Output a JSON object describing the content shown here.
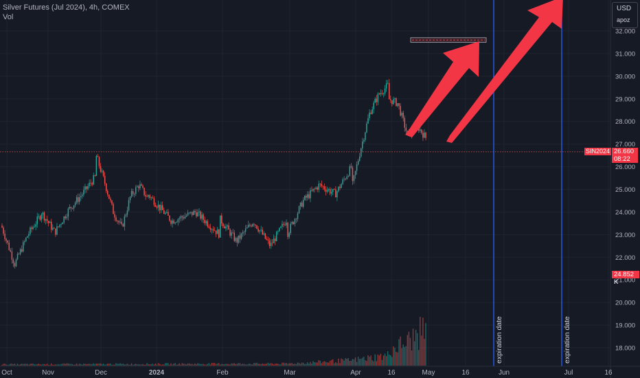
{
  "header": {
    "title": "Silver Futures (Jul 2024), 4h, COMEX",
    "volume_label": "Vol"
  },
  "scale_box": {
    "currency": "USD",
    "mode": "apoz"
  },
  "last_price": {
    "symbol": "SIN2024",
    "value": "26.660",
    "countdown": "08:22"
  },
  "last_volume": {
    "value": "24.852 K"
  },
  "colors": {
    "background": "#161a25",
    "up": "#26a69a",
    "down": "#ef5350",
    "arrow": "#f23645",
    "expiry_line": "#2962ff",
    "axis_text": "#b2b5be"
  },
  "chart_data": {
    "type": "candlestick",
    "title": "Silver Futures (Jul 2024), 4h, COMEX",
    "y_axis": {
      "ticks": [
        "32.000",
        "31.000",
        "30.000",
        "29.000",
        "28.000",
        "27.000",
        "26.000",
        "25.000",
        "24.000",
        "23.000",
        "22.000",
        "21.000",
        "20.000",
        "19.000",
        "18.000"
      ],
      "range": [
        17.3,
        32.6
      ]
    },
    "x_axis": {
      "ticks": [
        "Oct",
        "Nov",
        "Dec",
        "2024",
        "Feb",
        "Mar",
        "Apr",
        "16",
        "May",
        "16",
        "Jun",
        "Jul",
        "16"
      ]
    },
    "price_path": [
      [
        "Oct",
        23.4
      ],
      [
        "Oct",
        21.7
      ],
      [
        "Oct",
        23.0
      ],
      [
        "Oct",
        23.9
      ],
      [
        "Nov",
        24.0
      ],
      [
        "Nov",
        23.1
      ],
      [
        "Nov",
        24.1
      ],
      [
        "Nov",
        24.8
      ],
      [
        "Nov",
        25.6
      ],
      [
        "Dec",
        26.5
      ],
      [
        "Dec",
        25.3
      ],
      [
        "Dec",
        24.0
      ],
      [
        "Dec",
        23.3
      ],
      [
        "Dec",
        24.7
      ],
      [
        "Dec",
        25.2
      ],
      [
        "Dec",
        24.6
      ],
      [
        "2024",
        24.8
      ],
      [
        "2024",
        23.6
      ],
      [
        "2024",
        24.0
      ],
      [
        "2024",
        23.0
      ],
      [
        "Feb",
        23.7
      ],
      [
        "Feb",
        22.7
      ],
      [
        "Feb",
        23.6
      ],
      [
        "Feb",
        22.5
      ],
      [
        "Feb",
        23.7
      ],
      [
        "Mar",
        23.0
      ],
      [
        "Mar",
        24.5
      ],
      [
        "Mar",
        25.2
      ],
      [
        "Mar",
        24.8
      ],
      [
        "Mar",
        26.0
      ],
      [
        "Apr",
        25.0
      ],
      [
        "Apr",
        26.8
      ],
      [
        "Apr",
        28.4
      ],
      [
        "Apr",
        29.2
      ],
      [
        "Apr",
        29.6
      ],
      [
        "16",
        29.0
      ],
      [
        "16",
        28.8
      ],
      [
        "16",
        27.4
      ],
      [
        "16",
        27.8
      ],
      [
        "16",
        27.2
      ],
      [
        "May",
        26.66
      ]
    ],
    "volume_path": [
      [
        "Oct",
        0.02
      ],
      [
        "Mar",
        0.03
      ],
      [
        "Apr",
        0.08
      ],
      [
        "Apr",
        0.15
      ],
      [
        "16",
        0.22
      ],
      [
        "16",
        0.35
      ],
      [
        "16",
        0.55
      ],
      [
        "May",
        1.0
      ]
    ],
    "annotations": [
      {
        "type": "vertical-line",
        "label": "expiration date"
      },
      {
        "type": "vertical-line",
        "label": "expiration date"
      },
      {
        "type": "arrow",
        "from": 27.3,
        "to": 31.6
      },
      {
        "type": "arrow",
        "from": 27.0,
        "to": 32.4
      },
      {
        "type": "rectangle",
        "from": 31.5,
        "to": 31.7
      }
    ],
    "last_price_line": 26.66
  }
}
